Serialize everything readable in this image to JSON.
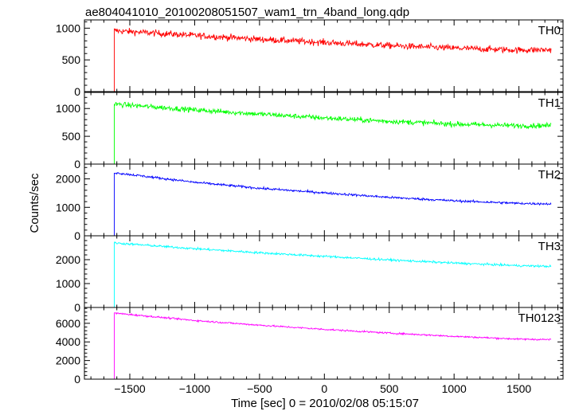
{
  "chart_data": {
    "type": "line",
    "title": "ae804041010_20100208051507_wam1_trn_4band_long.qdp",
    "xlabel": "Time [sec] 0 = 2010/02/08 05:15:07",
    "ylabel": "Counts/sec",
    "xlim": [
      -1850,
      1840
    ],
    "x_ticks": [
      -1500,
      -1000,
      -500,
      0,
      500,
      1000,
      1500
    ],
    "x_tick_labels": [
      "−1500",
      "−1000",
      "−500",
      "0",
      "500",
      "1000",
      "1500"
    ],
    "trigger_time": -1620,
    "data_start": -1750,
    "data_end": 1750,
    "panels": [
      {
        "name": "TH0",
        "color": "#ff0000",
        "ylim": [
          0,
          1130
        ],
        "y_ticks": [
          0,
          500,
          1000
        ],
        "y_tick_labels": [
          "0",
          "500",
          "1000"
        ],
        "pre_trigger_level": 0,
        "series": [
          {
            "x": -1620,
            "y": 960
          },
          {
            "x": -1000,
            "y": 885
          },
          {
            "x": -500,
            "y": 825
          },
          {
            "x": 0,
            "y": 775
          },
          {
            "x": 500,
            "y": 725
          },
          {
            "x": 1000,
            "y": 685
          },
          {
            "x": 1500,
            "y": 655
          },
          {
            "x": 1750,
            "y": 660
          }
        ],
        "noise": 50
      },
      {
        "name": "TH1",
        "color": "#00ff00",
        "ylim": [
          0,
          1290
        ],
        "y_ticks": [
          0,
          500,
          1000
        ],
        "y_tick_labels": [
          "0",
          "500",
          "1000"
        ],
        "pre_trigger_level": 0,
        "series": [
          {
            "x": -1620,
            "y": 1080
          },
          {
            "x": -1000,
            "y": 975
          },
          {
            "x": -500,
            "y": 900
          },
          {
            "x": 0,
            "y": 830
          },
          {
            "x": 500,
            "y": 770
          },
          {
            "x": 1000,
            "y": 720
          },
          {
            "x": 1500,
            "y": 690
          },
          {
            "x": 1750,
            "y": 695
          }
        ],
        "noise": 45
      },
      {
        "name": "TH2",
        "color": "#0000ff",
        "ylim": [
          0,
          2520
        ],
        "y_ticks": [
          0,
          1000,
          2000
        ],
        "y_tick_labels": [
          "0",
          "1000",
          "2000"
        ],
        "pre_trigger_level": 0,
        "series": [
          {
            "x": -1620,
            "y": 2220
          },
          {
            "x": -1000,
            "y": 1880
          },
          {
            "x": -500,
            "y": 1670
          },
          {
            "x": 0,
            "y": 1510
          },
          {
            "x": 500,
            "y": 1350
          },
          {
            "x": 1000,
            "y": 1230
          },
          {
            "x": 1500,
            "y": 1140
          },
          {
            "x": 1750,
            "y": 1120
          }
        ],
        "noise": 40
      },
      {
        "name": "TH3",
        "color": "#00ffff",
        "ylim": [
          0,
          3000
        ],
        "y_ticks": [
          0,
          1000,
          2000
        ],
        "y_tick_labels": [
          "0",
          "1000",
          "2000"
        ],
        "pre_trigger_level": 0,
        "series": [
          {
            "x": -1620,
            "y": 2700
          },
          {
            "x": -1000,
            "y": 2460
          },
          {
            "x": -500,
            "y": 2290
          },
          {
            "x": 0,
            "y": 2140
          },
          {
            "x": 500,
            "y": 1990
          },
          {
            "x": 1000,
            "y": 1860
          },
          {
            "x": 1500,
            "y": 1750
          },
          {
            "x": 1750,
            "y": 1720
          }
        ],
        "noise": 45
      },
      {
        "name": "TH0123",
        "color": "#ff00ff",
        "ylim": [
          0,
          7700
        ],
        "y_ticks": [
          0,
          2000,
          4000,
          6000
        ],
        "y_tick_labels": [
          "0",
          "2000",
          "4000",
          "6000"
        ],
        "pre_trigger_level": 0,
        "series": [
          {
            "x": -1620,
            "y": 7100
          },
          {
            "x": -1000,
            "y": 6300
          },
          {
            "x": -500,
            "y": 5800
          },
          {
            "x": 0,
            "y": 5350
          },
          {
            "x": 500,
            "y": 4950
          },
          {
            "x": 1000,
            "y": 4600
          },
          {
            "x": 1500,
            "y": 4300
          },
          {
            "x": 1750,
            "y": 4250
          }
        ],
        "noise": 90
      }
    ]
  }
}
